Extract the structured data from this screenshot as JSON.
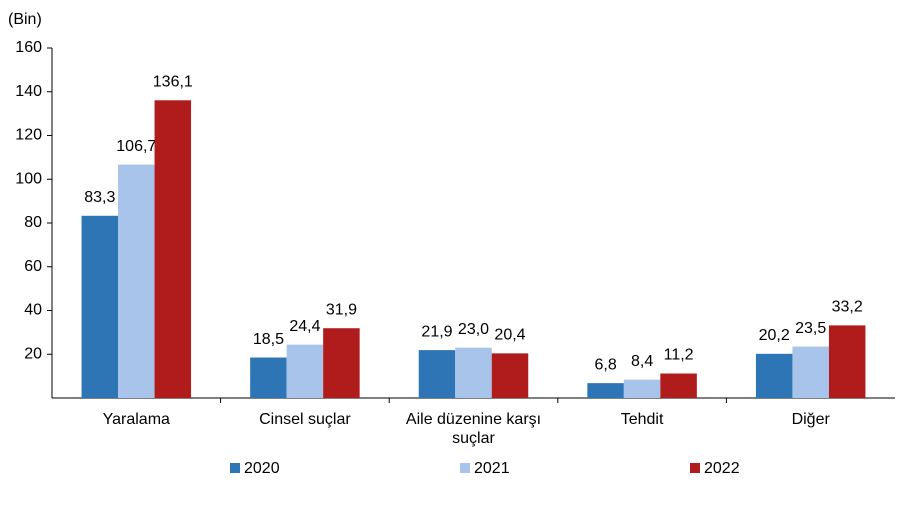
{
  "chart_data": {
    "type": "bar",
    "y_label": "(Bin)",
    "categories": [
      "Yaralama",
      "Cinsel suçlar",
      "Aile düzenine karşı suçlar",
      "Tehdit",
      "Diğer"
    ],
    "series": [
      {
        "name": "2020",
        "color": "#2e75b6",
        "values": [
          83.3,
          18.5,
          21.9,
          6.8,
          20.2
        ],
        "value_labels": [
          "83,3",
          "18,5",
          "21,9",
          "6,8",
          "20,2"
        ]
      },
      {
        "name": "2021",
        "color": "#a9c4eb",
        "values": [
          106.7,
          24.4,
          23.0,
          8.4,
          23.5
        ],
        "value_labels": [
          "106,7",
          "24,4",
          "23,0",
          "8,4",
          "23,5"
        ]
      },
      {
        "name": "2022",
        "color": "#b01c1c",
        "values": [
          136.1,
          31.9,
          20.4,
          11.2,
          33.2
        ],
        "value_labels": [
          "136,1",
          "31,9",
          "20,4",
          "11,2",
          "33,2"
        ]
      }
    ],
    "ylim": [
      0,
      160
    ],
    "yticks": [
      20,
      40,
      60,
      80,
      100,
      120,
      140,
      160
    ],
    "grid": false
  }
}
